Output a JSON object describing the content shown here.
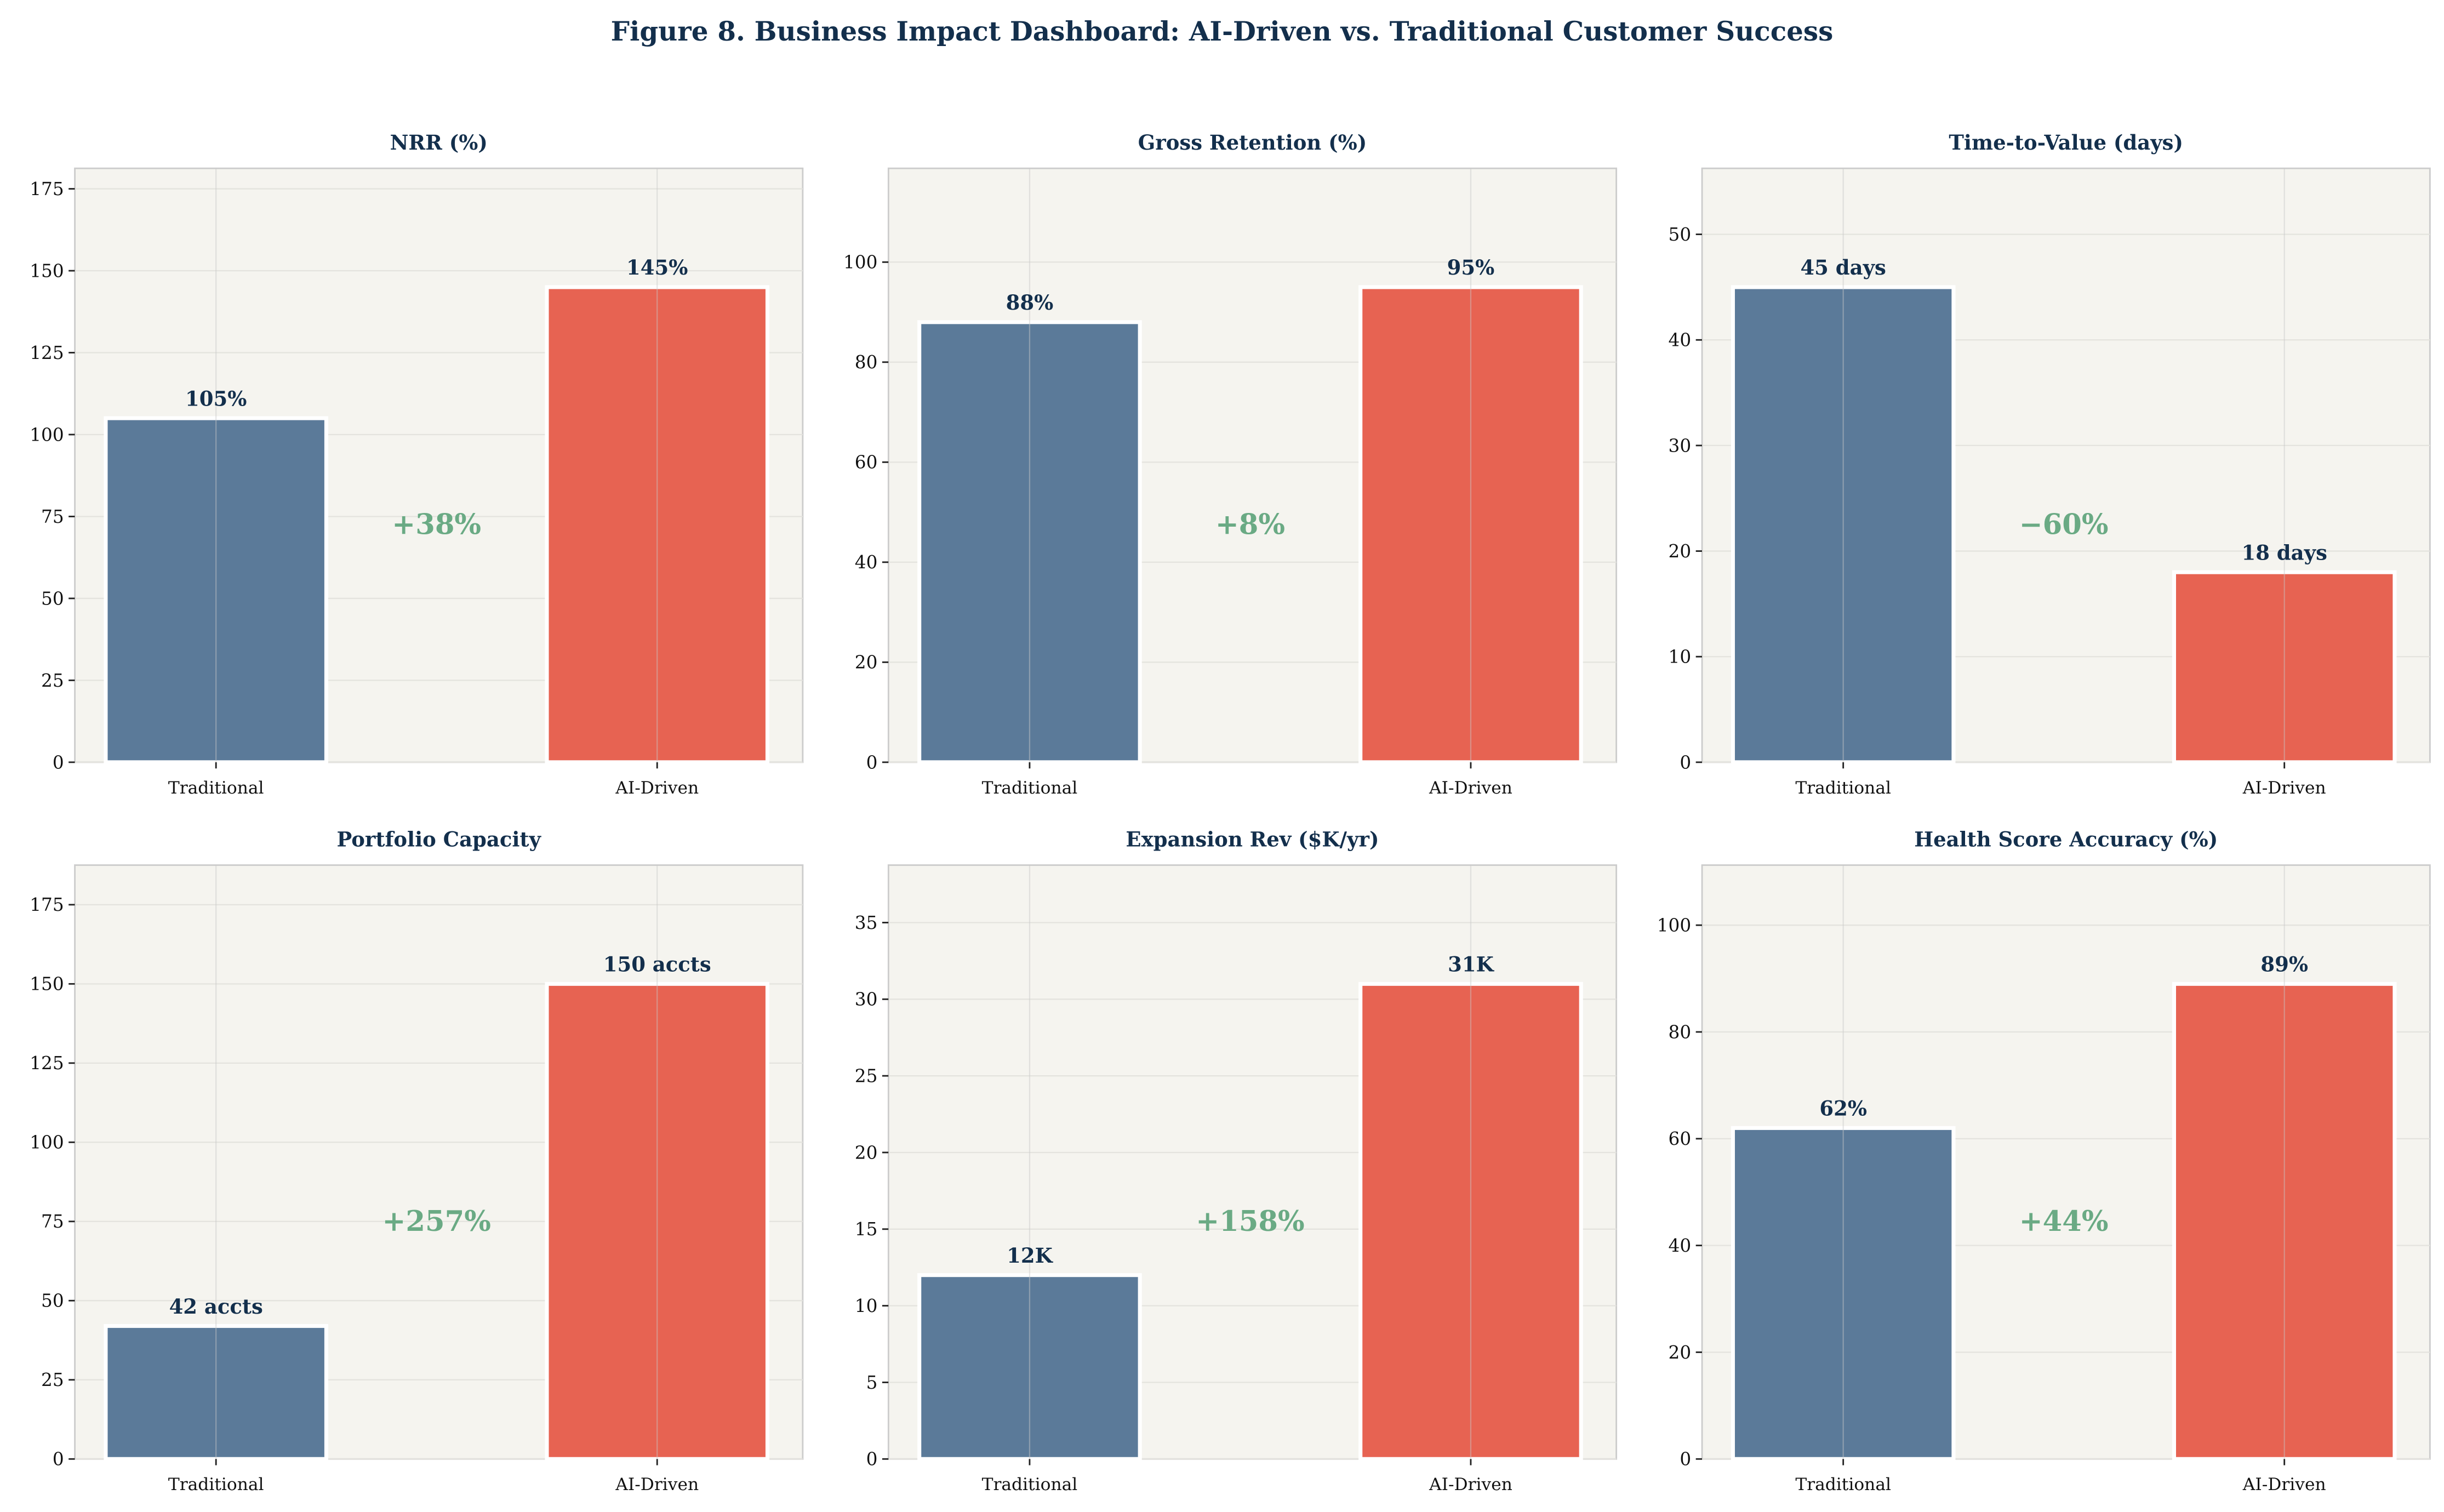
{
  "title": "Figure 8. Business Impact Dashboard: AI-Driven vs. Traditional Customer Success",
  "colors": {
    "traditional": "#5b7a99",
    "ai_driven": "#e76352",
    "delta": "#6aaa84",
    "title": "#132f4c",
    "plot_bg": "#f5f4ef"
  },
  "chart_data": [
    {
      "type": "bar",
      "title": "NRR (%)",
      "categories": [
        "Traditional",
        "AI-Driven"
      ],
      "values": [
        105,
        145
      ],
      "labels": [
        "105%",
        "145%"
      ],
      "delta": "+38%",
      "ylim": [
        0,
        181.25
      ],
      "yticks": [
        0,
        25,
        50,
        75,
        100,
        125,
        150,
        175
      ],
      "grid": true
    },
    {
      "type": "bar",
      "title": "Gross Retention (%)",
      "categories": [
        "Traditional",
        "AI-Driven"
      ],
      "values": [
        88,
        95
      ],
      "labels": [
        "88%",
        "95%"
      ],
      "delta": "+8%",
      "ylim": [
        0,
        118.75
      ],
      "yticks": [
        0,
        20,
        40,
        60,
        80,
        100
      ],
      "grid": true
    },
    {
      "type": "bar",
      "title": "Time-to-Value (days)",
      "categories": [
        "Traditional",
        "AI-Driven"
      ],
      "values": [
        45,
        18
      ],
      "labels": [
        "45 days",
        "18 days"
      ],
      "delta": "−60%",
      "ylim": [
        0,
        56.25
      ],
      "yticks": [
        0,
        10,
        20,
        30,
        40,
        50
      ],
      "grid": true
    },
    {
      "type": "bar",
      "title": "Portfolio Capacity",
      "categories": [
        "Traditional",
        "AI-Driven"
      ],
      "values": [
        42,
        150
      ],
      "labels": [
        "42 accts",
        "150 accts"
      ],
      "delta": "+257%",
      "ylim": [
        0,
        187.5
      ],
      "yticks": [
        0,
        25,
        50,
        75,
        100,
        125,
        150,
        175
      ],
      "grid": true
    },
    {
      "type": "bar",
      "title": "Expansion Rev ($K/yr)",
      "categories": [
        "Traditional",
        "AI-Driven"
      ],
      "values": [
        12,
        31
      ],
      "labels": [
        "12K",
        "31K"
      ],
      "delta": "+158%",
      "ylim": [
        0,
        38.75
      ],
      "yticks": [
        0,
        5,
        10,
        15,
        20,
        25,
        30,
        35
      ],
      "grid": true
    },
    {
      "type": "bar",
      "title": "Health Score Accuracy (%)",
      "categories": [
        "Traditional",
        "AI-Driven"
      ],
      "values": [
        62,
        89
      ],
      "labels": [
        "62%",
        "89%"
      ],
      "delta": "+44%",
      "ylim": [
        0,
        111.25
      ],
      "yticks": [
        0,
        20,
        40,
        60,
        80,
        100
      ],
      "grid": true
    }
  ]
}
